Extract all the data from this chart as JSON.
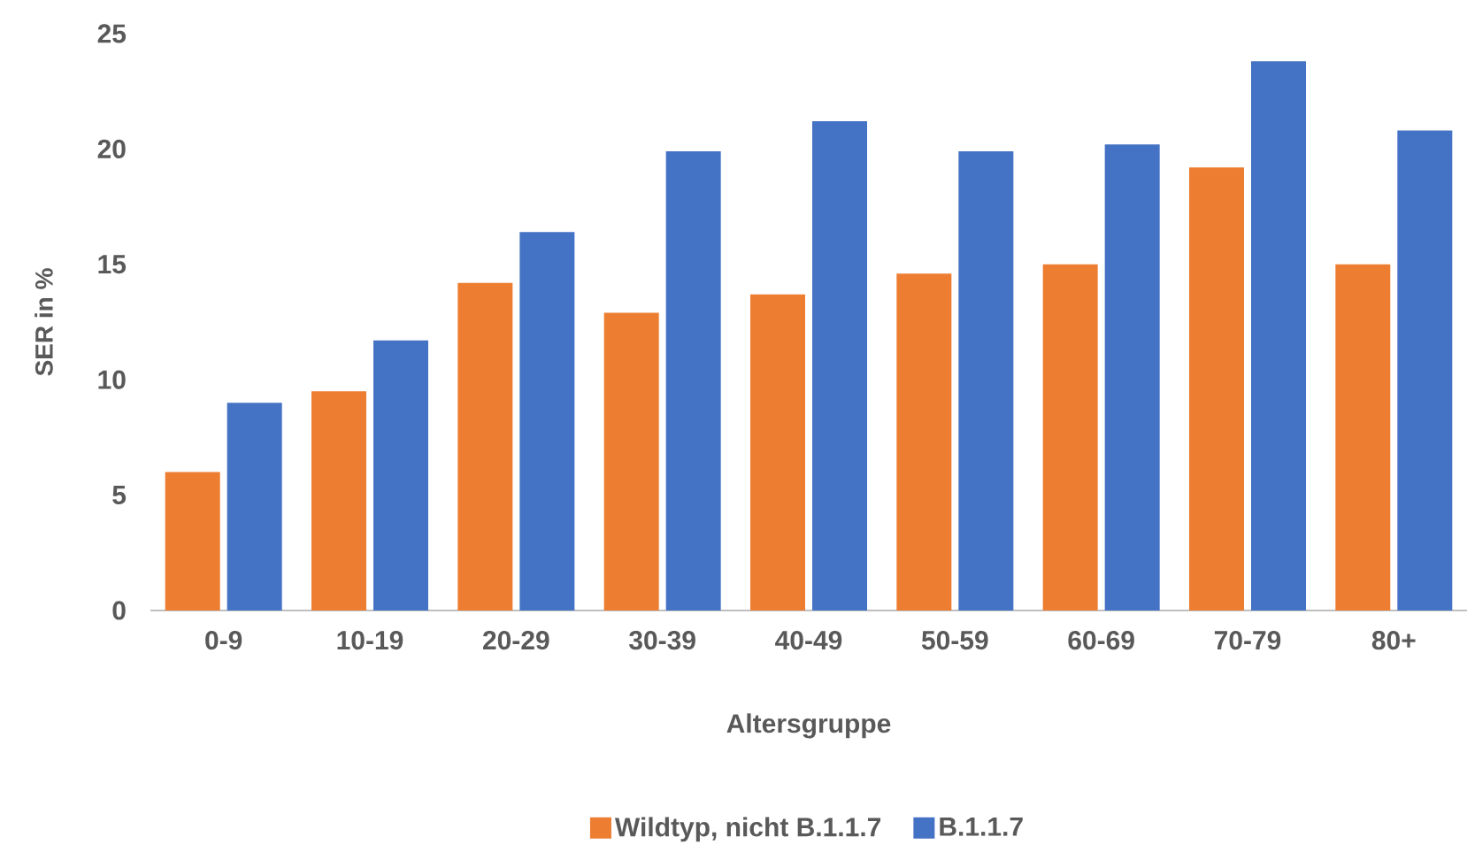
{
  "chart_data": {
    "type": "bar",
    "xlabel": "Altersgruppe",
    "ylabel": "SER in %",
    "categories": [
      "0-9",
      "10-19",
      "20-29",
      "30-39",
      "40-49",
      "50-59",
      "60-69",
      "70-79",
      "80+"
    ],
    "series": [
      {
        "name": "Wildtyp, nicht B.1.1.7",
        "color": "#ed7d31",
        "values": [
          6.0,
          9.5,
          14.2,
          12.9,
          13.7,
          14.6,
          15.0,
          19.2,
          15.0
        ]
      },
      {
        "name": "B.1.1.7",
        "color": "#4472c4",
        "values": [
          9.0,
          11.7,
          16.4,
          19.9,
          21.2,
          19.9,
          20.2,
          23.8,
          20.8
        ]
      }
    ],
    "ylim": [
      0,
      25
    ],
    "yticks": [
      0,
      5,
      10,
      15,
      20,
      25
    ],
    "grid": false,
    "legend": "bottom"
  }
}
